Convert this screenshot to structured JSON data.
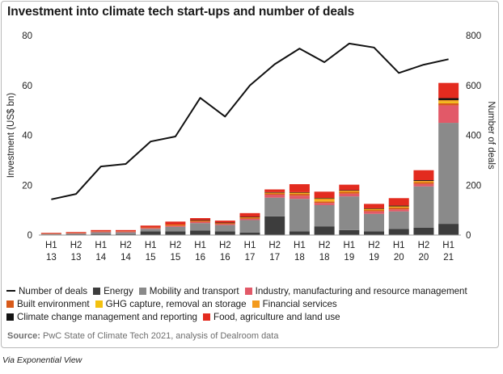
{
  "title": "Investment into climate tech start-ups and number of deals",
  "source_label": "Source:",
  "source_text": "PwC State of Climate Tech 2021, analysis of Dealroom data",
  "via": "Via Exponential View",
  "legend": [
    {
      "label": "Number of deals",
      "kind": "line",
      "color": "#111111"
    },
    {
      "label": "Energy",
      "kind": "box",
      "color": "#3d3d3d"
    },
    {
      "label": "Mobility and transport",
      "kind": "box",
      "color": "#8a8a8a"
    },
    {
      "label": "Industry, manufacturing and resource management",
      "kind": "box",
      "color": "#e25968"
    },
    {
      "label": "Built environment",
      "kind": "box",
      "color": "#d85a1a"
    },
    {
      "label": "GHG capture, removal an storage",
      "kind": "box",
      "color": "#f3c10f"
    },
    {
      "label": "Financial services",
      "kind": "box",
      "color": "#f39a1d"
    },
    {
      "label": "Climate change management and reporting",
      "kind": "box",
      "color": "#141414"
    },
    {
      "label": "Food, agriculture and land use",
      "kind": "box",
      "color": "#e32b1f"
    }
  ],
  "legend_rows": [
    [
      0,
      1,
      2,
      3
    ],
    [
      4,
      5,
      6
    ],
    [
      7,
      8
    ]
  ],
  "chart_data": {
    "type": "bar",
    "stacked": true,
    "categories": [
      [
        "H1",
        "13"
      ],
      [
        "H2",
        "13"
      ],
      [
        "H1",
        "14"
      ],
      [
        "H2",
        "14"
      ],
      [
        "H1",
        "15"
      ],
      [
        "H2",
        "15"
      ],
      [
        "H1",
        "16"
      ],
      [
        "H2",
        "16"
      ],
      [
        "H1",
        "17"
      ],
      [
        "H2",
        "17"
      ],
      [
        "H1",
        "18"
      ],
      [
        "H2",
        "18"
      ],
      [
        "H1",
        "19"
      ],
      [
        "H2",
        "19"
      ],
      [
        "H1",
        "20"
      ],
      [
        "H2",
        "20"
      ],
      [
        "H1",
        "21"
      ]
    ],
    "ylabel": "Investment (US$ bn)",
    "y2label": "Number of deals",
    "ylim": [
      0,
      80
    ],
    "y2lim": [
      0,
      800
    ],
    "yticks": [
      0,
      20,
      40,
      60,
      80
    ],
    "y2ticks": [
      0,
      200,
      400,
      600,
      800
    ],
    "grid": false,
    "legend_position": "bottom",
    "series": [
      {
        "name": "Energy",
        "color": "#3d3d3d",
        "values": [
          0.2,
          0.3,
          0.4,
          0.4,
          1.5,
          1.5,
          1.8,
          1.5,
          1.0,
          7.5,
          1.5,
          3.5,
          2.0,
          1.5,
          2.5,
          3.0,
          4.5
        ]
      },
      {
        "name": "Mobility and transport",
        "color": "#8a8a8a",
        "values": [
          0.3,
          0.3,
          0.7,
          0.7,
          1.0,
          1.8,
          3.0,
          2.5,
          5.0,
          7.5,
          13.0,
          8.5,
          13.5,
          7.0,
          7.0,
          16.5,
          40.5
        ]
      },
      {
        "name": "Industry, manufacturing and resource management",
        "color": "#e25968",
        "values": [
          0.1,
          0.2,
          0.3,
          0.3,
          0.3,
          0.4,
          0.5,
          0.4,
          0.5,
          1.2,
          1.3,
          0.9,
          1.1,
          1.0,
          0.8,
          1.0,
          7.0
        ]
      },
      {
        "name": "Built environment",
        "color": "#d85a1a",
        "values": [
          0.1,
          0.1,
          0.2,
          0.2,
          0.3,
          0.4,
          0.5,
          0.4,
          0.5,
          0.6,
          0.7,
          0.6,
          0.8,
          0.6,
          0.7,
          0.7,
          0.9
        ]
      },
      {
        "name": "GHG capture, removal an storage",
        "color": "#f3c10f",
        "values": [
          0.0,
          0.0,
          0.0,
          0.0,
          0.0,
          0.0,
          0.0,
          0.0,
          0.1,
          0.1,
          0.2,
          0.4,
          0.1,
          0.1,
          0.2,
          0.2,
          0.6
        ]
      },
      {
        "name": "Financial services",
        "color": "#f39a1d",
        "values": [
          0.0,
          0.0,
          0.0,
          0.0,
          0.0,
          0.1,
          0.1,
          0.1,
          0.1,
          0.2,
          0.3,
          0.8,
          0.3,
          0.3,
          0.3,
          0.3,
          0.6
        ]
      },
      {
        "name": "Climate change management and reporting",
        "color": "#141414",
        "values": [
          0.0,
          0.0,
          0.0,
          0.0,
          0.0,
          0.0,
          0.1,
          0.1,
          0.1,
          0.1,
          0.2,
          0.2,
          0.2,
          0.2,
          0.3,
          0.3,
          0.8
        ]
      },
      {
        "name": "Food, agriculture and land use",
        "color": "#e32b1f",
        "values": [
          0.2,
          0.3,
          0.4,
          0.4,
          0.7,
          1.2,
          0.8,
          0.8,
          1.5,
          1.1,
          3.2,
          2.5,
          2.2,
          1.8,
          3.0,
          4.0,
          6.1
        ]
      }
    ],
    "line_series": {
      "name": "Number of deals",
      "color": "#111111",
      "axis": "right",
      "values": [
        143,
        165,
        275,
        285,
        375,
        395,
        550,
        475,
        600,
        685,
        748,
        693,
        768,
        752,
        650,
        683,
        705
      ]
    }
  }
}
